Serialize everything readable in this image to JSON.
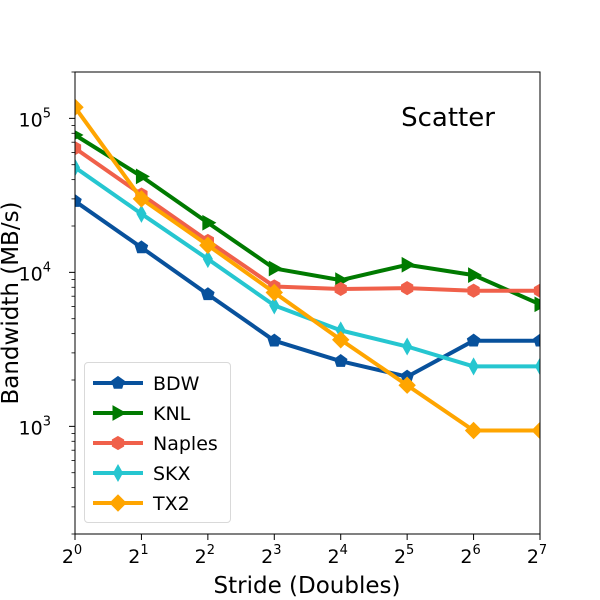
{
  "chart_data": {
    "type": "line",
    "title": "Scatter",
    "xlabel": "Stride (Doubles)",
    "ylabel": "Bandwidth (MB/s)",
    "x_scale": "log2",
    "y_scale": "log10",
    "x": [
      1,
      2,
      4,
      8,
      16,
      32,
      64,
      128
    ],
    "x_tick_labels": [
      {
        "base": "2",
        "exp": "0"
      },
      {
        "base": "2",
        "exp": "1"
      },
      {
        "base": "2",
        "exp": "2"
      },
      {
        "base": "2",
        "exp": "3"
      },
      {
        "base": "2",
        "exp": "4"
      },
      {
        "base": "2",
        "exp": "5"
      },
      {
        "base": "2",
        "exp": "6"
      },
      {
        "base": "2",
        "exp": "7"
      }
    ],
    "y_tick_labels": [
      {
        "value": 1000,
        "base": "10",
        "exp": "3"
      },
      {
        "value": 10000,
        "base": "10",
        "exp": "4"
      },
      {
        "value": 100000,
        "base": "10",
        "exp": "5"
      }
    ],
    "xlim": [
      1,
      128
    ],
    "ylim": [
      200,
      200000
    ],
    "legend_position": "lower-left",
    "series": [
      {
        "name": "BDW",
        "color": "#08519c",
        "marker": "pentagon",
        "values": [
          29000,
          14500,
          7200,
          3600,
          2650,
          2100,
          3600,
          3600
        ]
      },
      {
        "name": "KNL",
        "color": "#007a00",
        "marker": "triangle-right",
        "values": [
          78000,
          42000,
          21000,
          10600,
          8900,
          11200,
          9600,
          6200
        ]
      },
      {
        "name": "Naples",
        "color": "#f0604a",
        "marker": "hexagon",
        "values": [
          64000,
          32000,
          16000,
          8100,
          7800,
          7900,
          7600,
          7600
        ]
      },
      {
        "name": "SKX",
        "color": "#26c6d0",
        "marker": "thin-diamond",
        "values": [
          48000,
          24000,
          12200,
          6100,
          4200,
          3300,
          2450,
          2450
        ]
      },
      {
        "name": "TX2",
        "color": "#ffa500",
        "marker": "diamond",
        "values": [
          118000,
          30000,
          15000,
          7400,
          3650,
          1850,
          940,
          940
        ]
      }
    ]
  }
}
